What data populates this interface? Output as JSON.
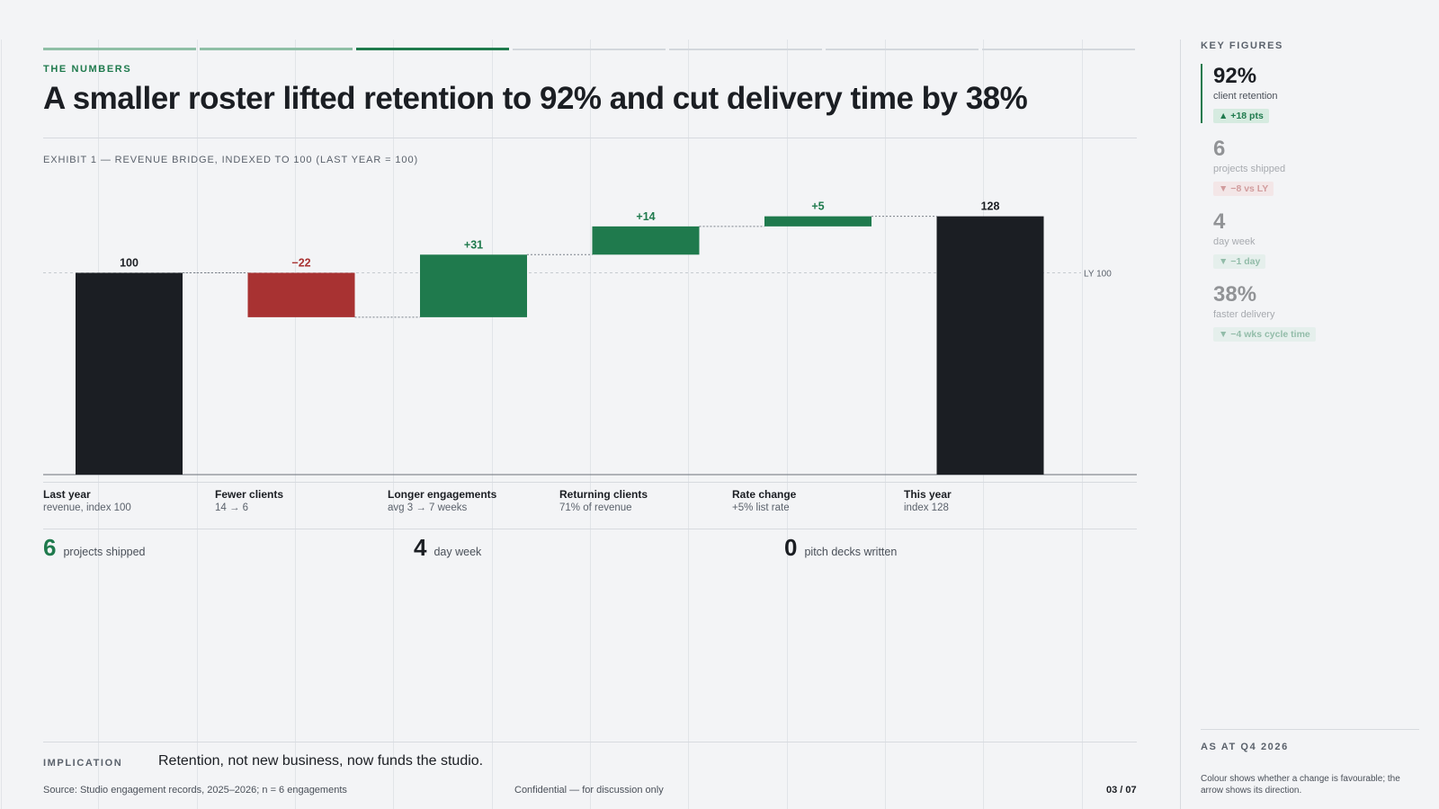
{
  "progress": {
    "total": 7,
    "current": 3
  },
  "eyebrow": "THE NUMBERS",
  "headline": "A smaller roster lifted retention to 92% and cut delivery time by 38%",
  "exhibit": "EXHIBIT 1 — REVENUE BRIDGE, INDEXED TO 100 (LAST YEAR = 100)",
  "chart_data": {
    "type": "bar",
    "subtype": "waterfall",
    "title": "EXHIBIT 1 — REVENUE BRIDGE, INDEXED TO 100 (LAST YEAR = 100)",
    "categories": [
      "Last year",
      "Fewer clients",
      "Longer engagements",
      "Returning clients",
      "Rate change",
      "This year"
    ],
    "subtitles": [
      "revenue, index 100",
      "14 → 6",
      "avg 3 → 7 weeks",
      "71% of revenue",
      "+5% list rate",
      "index 128"
    ],
    "kinds": [
      "total",
      "delta",
      "delta",
      "delta",
      "delta",
      "total"
    ],
    "values": [
      100,
      -22,
      31,
      14,
      5,
      128
    ],
    "value_labels": [
      "100",
      "−22",
      "+31",
      "+14",
      "+5",
      "128"
    ],
    "reference_line": {
      "value": 100,
      "label": "LY 100"
    },
    "ylim": [
      0,
      128
    ],
    "colors": {
      "total": "#1b1e23",
      "increase": "#1f7a4d",
      "decrease": "#a83232"
    }
  },
  "stats": [
    {
      "num": "6",
      "label": "projects shipped"
    },
    {
      "num": "4",
      "label": "day week"
    },
    {
      "num": "0",
      "label": "pitch decks written"
    }
  ],
  "implication": {
    "label": "IMPLICATION",
    "text": "Retention, not new business, now funds the studio."
  },
  "footer": {
    "source": "Source: Studio engagement records, 2025–2026; n = 6 engagements",
    "confidential": "Confidential — for discussion only",
    "page": "03 / 07"
  },
  "key_figures": {
    "title": "KEY FIGURES",
    "items": [
      {
        "value": "92%",
        "label": "client retention",
        "badge": "▲ +18 pts",
        "tone": "good"
      },
      {
        "value": "6",
        "label": "projects shipped",
        "badge": "▼ −8 vs LY",
        "tone": "bad"
      },
      {
        "value": "4",
        "label": "day week",
        "badge": "▼ −1 day",
        "tone": "good"
      },
      {
        "value": "38%",
        "label": "faster delivery",
        "badge": "▼ −4 wks cycle time",
        "tone": "good"
      }
    ]
  },
  "as_at": "AS AT Q4 2026",
  "note": "Colour shows whether a change is favourable; the arrow shows its direction."
}
